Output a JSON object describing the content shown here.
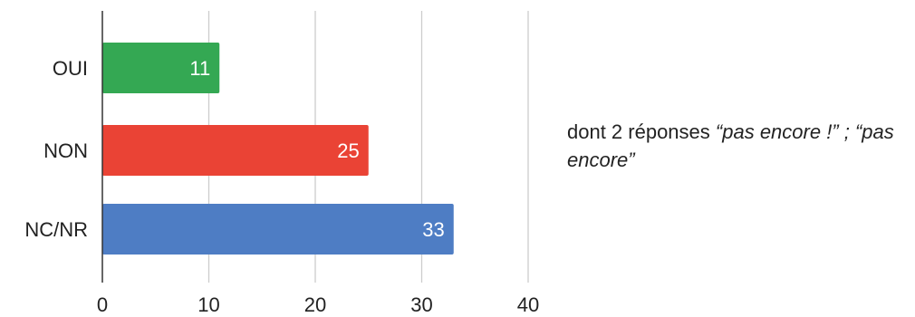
{
  "chart_data": {
    "type": "bar",
    "orientation": "horizontal",
    "categories": [
      "OUI",
      "NON",
      "NC/NR"
    ],
    "values": [
      11,
      25,
      33
    ],
    "colors": [
      "#34a853",
      "#ea4335",
      "#4e7dc4"
    ],
    "data_labels": [
      "11",
      "25",
      "33"
    ],
    "xlim": [
      0,
      40
    ],
    "x_ticks": [
      0,
      10,
      20,
      30,
      40
    ],
    "x_tick_labels": [
      "0",
      "10",
      "20",
      "30",
      "40"
    ],
    "grid": true,
    "title": "",
    "xlabel": "",
    "ylabel": ""
  },
  "annotation": {
    "text": "dont 2 réponses ",
    "quote": "“pas encore !” ; “pas encore”"
  }
}
